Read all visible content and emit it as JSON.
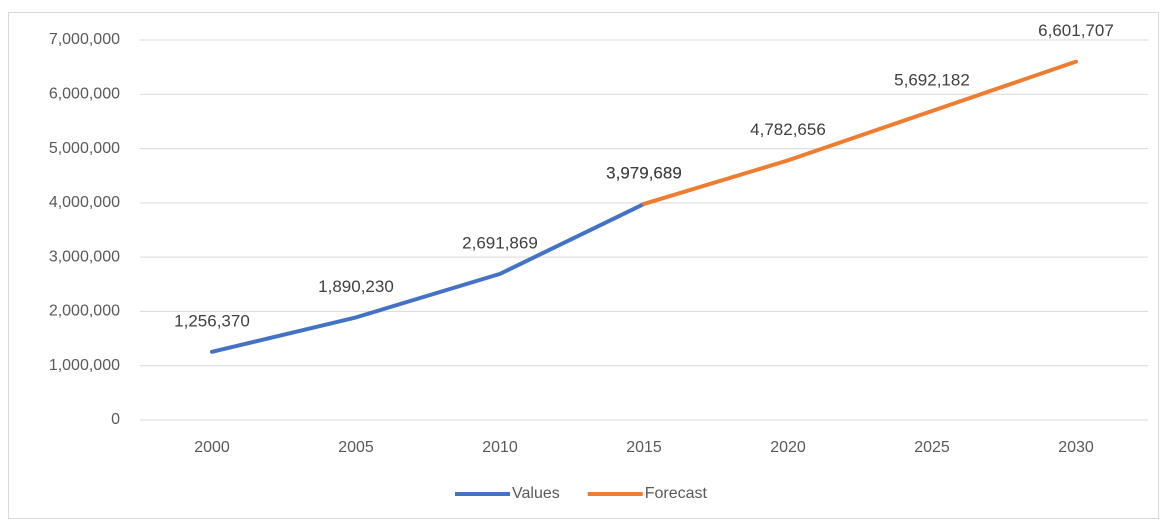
{
  "chart_data": {
    "type": "line",
    "categories": [
      "2000",
      "2005",
      "2010",
      "2015",
      "2020",
      "2025",
      "2030"
    ],
    "series": [
      {
        "name": "Values",
        "color": "#4472c4",
        "values": [
          1256370,
          1890230,
          2691869,
          3979689,
          null,
          null,
          null
        ],
        "value_labels": [
          "1,256,370",
          "1,890,230",
          "2,691,869",
          "3,979,689",
          null,
          null,
          null
        ]
      },
      {
        "name": "Forecast",
        "color": "#ed7d31",
        "values": [
          null,
          null,
          null,
          3979689,
          4782656,
          5692182,
          6601707
        ],
        "value_labels": [
          null,
          null,
          null,
          "3,979,689",
          "4,782,656",
          "5,692,182",
          "6,601,707"
        ]
      }
    ],
    "ylim": [
      0,
      7000000
    ],
    "yticks": [
      0,
      {
        "value": 1000000,
        "label": "1,000,000"
      },
      {
        "value": 2000000,
        "label": "2,000,000"
      },
      {
        "value": 3000000,
        "label": "3,000,000"
      },
      {
        "value": 4000000,
        "label": "4,000,000"
      },
      {
        "value": 5000000,
        "label": "5,000,000"
      },
      {
        "value": 6000000,
        "label": "6,000,000"
      },
      {
        "value": 7000000,
        "label": "7,000,000"
      }
    ],
    "grid": true,
    "legend": "bottom"
  }
}
